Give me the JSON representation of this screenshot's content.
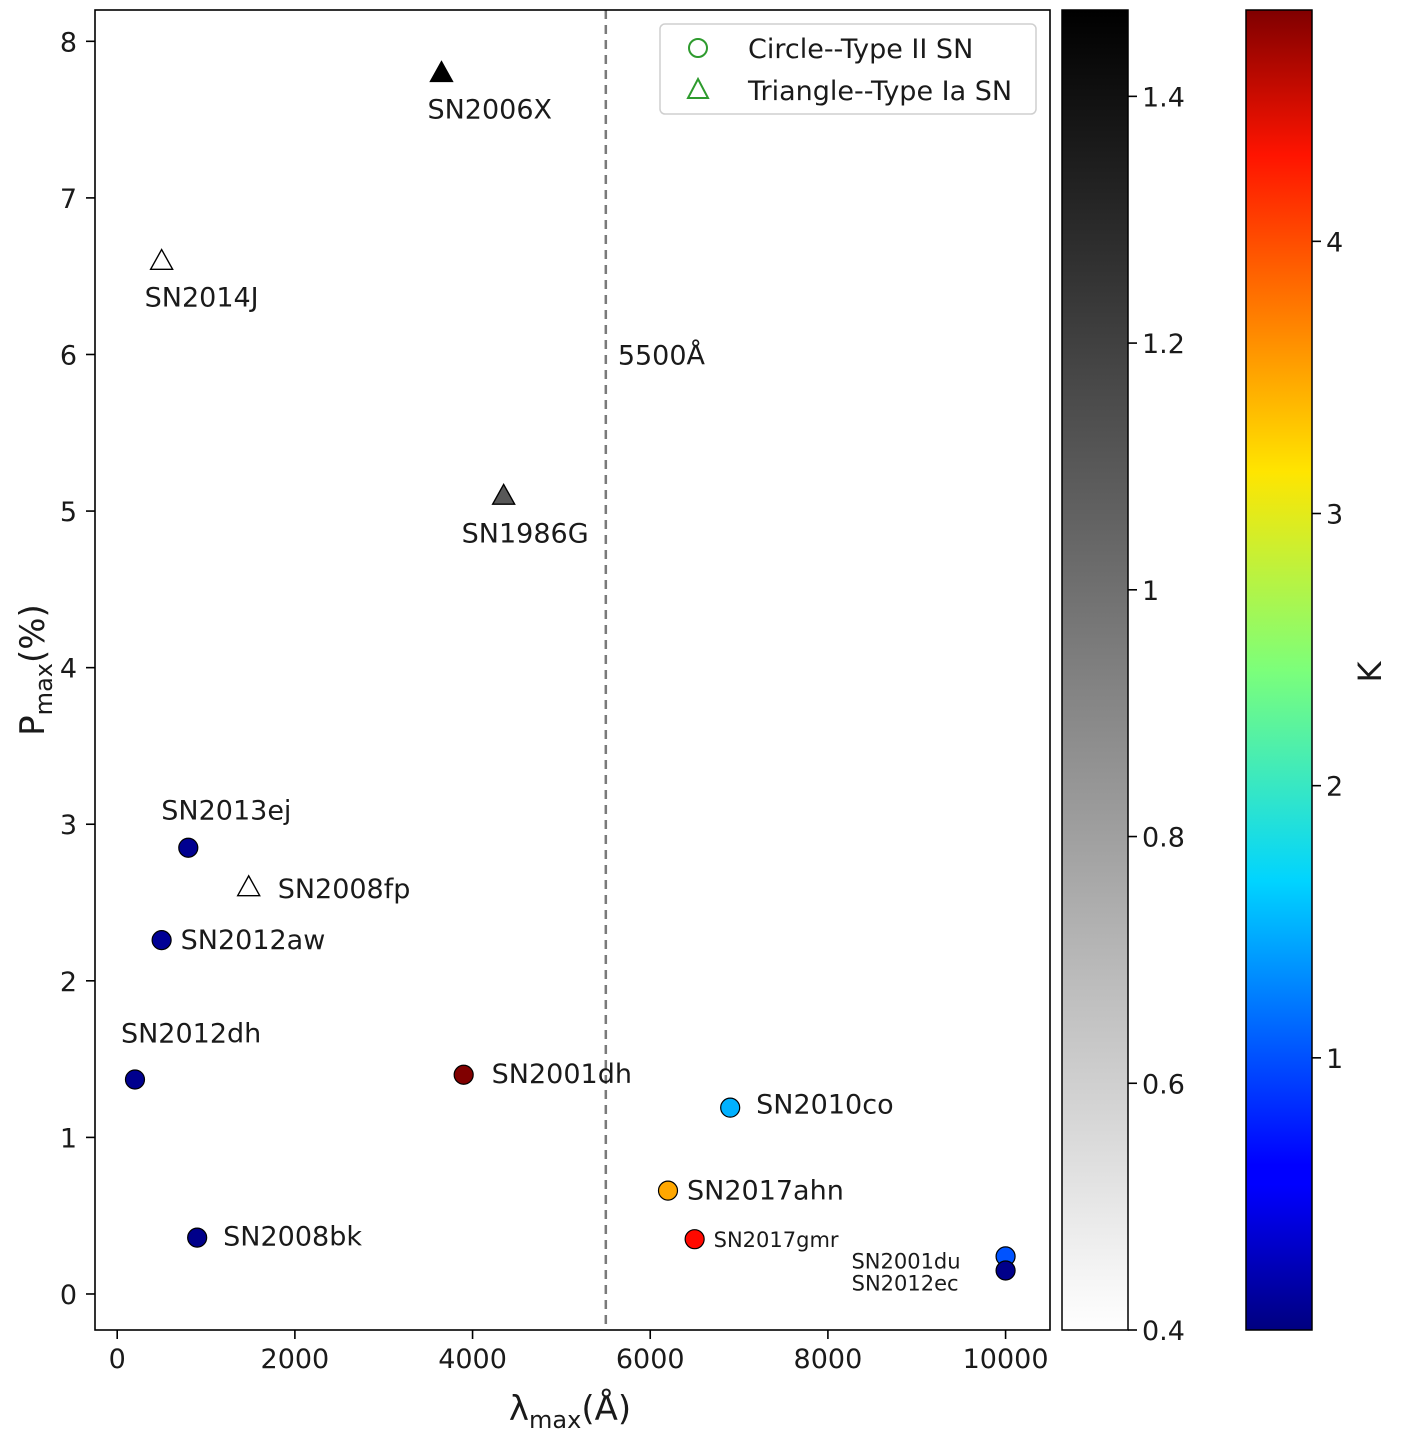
{
  "chart_data": {
    "type": "scatter",
    "xlabel": "λmax(Å)",
    "ylabel": "Pmax(%)",
    "xlim": [
      -250,
      10500
    ],
    "ylim": [
      -0.23,
      8.2
    ],
    "xticks": [
      0,
      2000,
      4000,
      6000,
      8000,
      10000
    ],
    "yticks": [
      0,
      1,
      2,
      3,
      4,
      5,
      6,
      7,
      8
    ],
    "grid": false,
    "vline": {
      "x": 5500,
      "label": "5500Å",
      "style": "dashed"
    },
    "legend": {
      "placement": "top-right",
      "entries": [
        {
          "marker": "circle",
          "label": "Circle--Type II SN"
        },
        {
          "marker": "triangle",
          "label": "Triangle--Type Ia SN"
        }
      ]
    },
    "type_ia_sn": [
      {
        "name": "SN2006X",
        "x": 3650,
        "y": 7.8,
        "k": 1.48
      },
      {
        "name": "SN2014J",
        "x": 500,
        "y": 6.6,
        "k": 0.4
      },
      {
        "name": "SN1986G",
        "x": 4350,
        "y": 5.1,
        "k": 1.1
      },
      {
        "name": "SN2008fp",
        "x": 1480,
        "y": 2.6,
        "k": 0.4
      }
    ],
    "type_ii_sn": [
      {
        "name": "SN2013ej",
        "x": 800,
        "y": 2.85,
        "k": 0.08
      },
      {
        "name": "SN2012aw",
        "x": 500,
        "y": 2.26,
        "k": 0.1
      },
      {
        "name": "SN2012dh",
        "x": 200,
        "y": 1.37,
        "k": 0.07
      },
      {
        "name": "SN2001dh",
        "x": 3900,
        "y": 1.4,
        "k": 4.85
      },
      {
        "name": "SN2010co",
        "x": 6900,
        "y": 1.19,
        "k": 1.45
      },
      {
        "name": "SN2017ahn",
        "x": 6200,
        "y": 0.66,
        "k": 3.45
      },
      {
        "name": "SN2017gmr",
        "x": 6500,
        "y": 0.35,
        "k": 4.2
      },
      {
        "name": "SN2008bk",
        "x": 900,
        "y": 0.36,
        "k": 0.05
      },
      {
        "name": "SN2001du",
        "x": 10000,
        "y": 0.24,
        "k": 1.0
      },
      {
        "name": "SN2012ec",
        "x": 10000,
        "y": 0.15,
        "k": 0.05
      }
    ],
    "colorbars": [
      {
        "name": "triangle-colorbar",
        "colormap": "gray_r",
        "range": [
          0.4,
          1.47
        ],
        "ticks": [
          0.4,
          0.6,
          0.8,
          1.0,
          1.2,
          1.4
        ],
        "label": ""
      },
      {
        "name": "circle-colorbar",
        "colormap": "jet",
        "range": [
          0.0,
          4.85
        ],
        "ticks": [
          1,
          2,
          3,
          4
        ],
        "label": "K"
      }
    ]
  }
}
